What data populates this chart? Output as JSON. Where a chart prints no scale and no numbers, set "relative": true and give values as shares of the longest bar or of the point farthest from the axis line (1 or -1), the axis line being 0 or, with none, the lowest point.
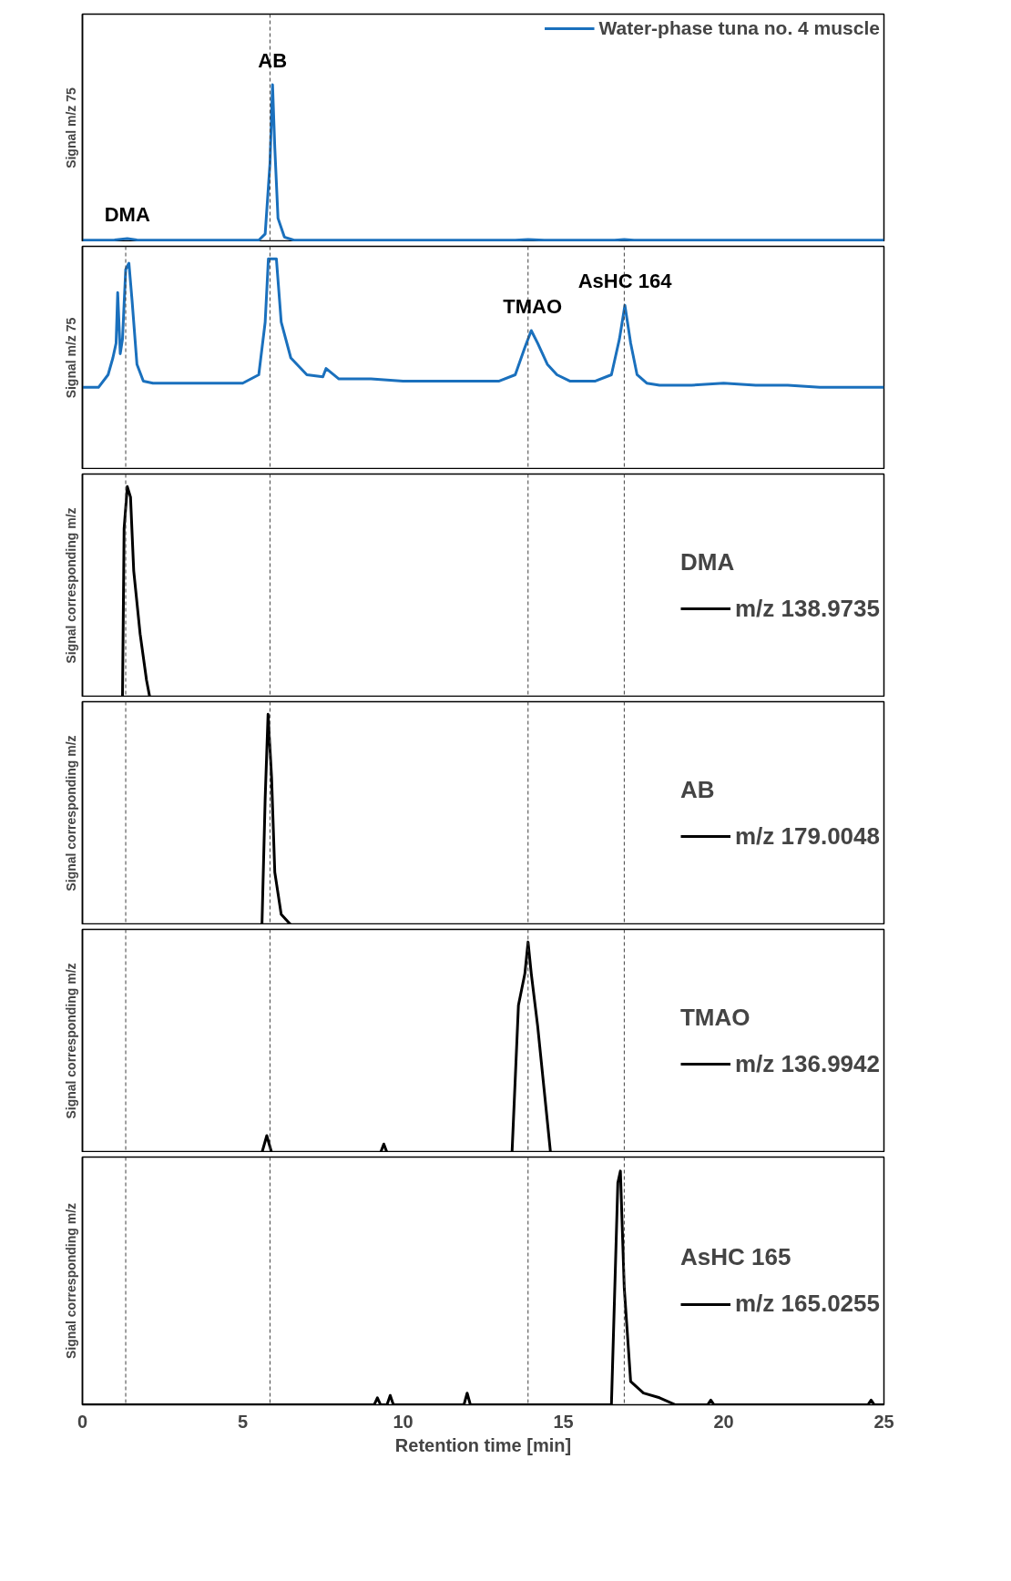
{
  "chart_data": [
    {
      "type": "line",
      "relative": true,
      "ylabel": "Signal m/z 75",
      "xlim": [
        0,
        25
      ],
      "tick_labels": false,
      "legend": "top right",
      "line_style": "solid",
      "annotations": [
        {
          "text": "DMA",
          "x": 1.4,
          "y": 0.02
        },
        {
          "text": "AB",
          "x": 5.93,
          "y": 1.0
        }
      ],
      "ref_lines": [
        {
          "axis": "x",
          "value": 5.85,
          "label": null,
          "color": "#404040",
          "line_style": "dashed"
        }
      ],
      "series": [
        {
          "name": "Water-phase tuna no. 4 muscle",
          "color": "#1a70bd",
          "x": [
            0,
            1.0,
            1.4,
            1.7,
            2.2,
            5.5,
            5.7,
            5.85,
            5.93,
            6.0,
            6.1,
            6.3,
            6.6,
            13.5,
            13.9,
            14.4,
            16.6,
            16.9,
            17.2,
            25
          ],
          "values": [
            0.01,
            0.012,
            0.02,
            0.012,
            0.01,
            0.01,
            0.05,
            0.5,
            1.0,
            0.6,
            0.15,
            0.03,
            0.01,
            0.01,
            0.015,
            0.01,
            0.01,
            0.015,
            0.01,
            0.01
          ]
        }
      ]
    },
    {
      "type": "line",
      "relative": true,
      "ylabel": "Signal m/z 75",
      "xlim": [
        0,
        25
      ],
      "tick_labels": false,
      "line_style": "solid",
      "annotations": [
        {
          "text": "TMAO",
          "x": 14.04,
          "y": 0.66
        },
        {
          "text": "AsHC 164",
          "x": 16.92,
          "y": 0.78
        }
      ],
      "ref_lines": [
        {
          "axis": "x",
          "value": 1.35,
          "label": null,
          "color": "#404040",
          "line_style": "dashed"
        },
        {
          "axis": "x",
          "value": 5.85,
          "label": null,
          "color": "#404040",
          "line_style": "dashed"
        },
        {
          "axis": "x",
          "value": 13.9,
          "label": null,
          "color": "#404040",
          "line_style": "dashed"
        },
        {
          "axis": "x",
          "value": 16.9,
          "label": null,
          "color": "#404040",
          "line_style": "dashed"
        }
      ],
      "series": [
        {
          "color": "#1a70bd",
          "x": [
            0,
            0.5,
            0.8,
            0.95,
            1.05,
            1.1,
            1.18,
            1.25,
            1.35,
            1.45,
            1.55,
            1.7,
            1.9,
            2.2,
            3,
            4,
            5,
            5.5,
            5.7,
            5.8,
            5.93,
            6.05,
            6.2,
            6.5,
            7,
            7.5,
            7.6,
            8,
            9,
            10,
            11,
            12,
            13,
            13.5,
            13.8,
            14.0,
            14.2,
            14.5,
            14.8,
            15.2,
            16,
            16.5,
            16.75,
            16.92,
            17.1,
            17.3,
            17.6,
            18,
            19,
            20,
            21,
            22,
            23,
            24,
            25
          ],
          "values": [
            0.39,
            0.39,
            0.45,
            0.53,
            0.6,
            0.84,
            0.55,
            0.62,
            0.95,
            0.98,
            0.8,
            0.5,
            0.42,
            0.41,
            0.41,
            0.41,
            0.41,
            0.45,
            0.7,
            1.0,
            1.0,
            1.0,
            0.7,
            0.53,
            0.45,
            0.44,
            0.48,
            0.43,
            0.43,
            0.42,
            0.42,
            0.42,
            0.42,
            0.45,
            0.58,
            0.66,
            0.6,
            0.5,
            0.45,
            0.42,
            0.42,
            0.45,
            0.62,
            0.78,
            0.6,
            0.45,
            0.41,
            0.4,
            0.4,
            0.41,
            0.4,
            0.4,
            0.39,
            0.39,
            0.39
          ]
        }
      ]
    },
    {
      "type": "line",
      "relative": true,
      "ylabel": "Signal corresponding m/z",
      "xlim": [
        0,
        25
      ],
      "tick_labels": false,
      "legend": "right",
      "legend_title": "DMA",
      "line_style": "solid",
      "ref_lines": [
        {
          "axis": "x",
          "value": 1.35,
          "label": null,
          "color": "#404040",
          "line_style": "dashed"
        },
        {
          "axis": "x",
          "value": 5.85,
          "label": null,
          "color": "#404040",
          "line_style": "dashed"
        },
        {
          "axis": "x",
          "value": 13.9,
          "label": null,
          "color": "#404040",
          "line_style": "dashed"
        },
        {
          "axis": "x",
          "value": 16.9,
          "label": null,
          "color": "#404040",
          "line_style": "dashed"
        }
      ],
      "series": [
        {
          "name": "m/z 138.9735",
          "color": "#000000",
          "x": [
            0,
            1.25,
            1.3,
            1.4,
            1.5,
            1.6,
            1.8,
            2.0,
            2.1,
            25
          ],
          "values": [
            0,
            0,
            0.8,
            1,
            0.95,
            0.6,
            0.3,
            0.08,
            0,
            0
          ]
        }
      ]
    },
    {
      "type": "line",
      "relative": true,
      "ylabel": "Signal corresponding m/z",
      "xlim": [
        0,
        25
      ],
      "tick_labels": false,
      "legend": "right",
      "legend_title": "AB",
      "line_style": "solid",
      "ref_lines": [
        {
          "axis": "x",
          "value": 1.35,
          "label": null,
          "color": "#404040",
          "line_style": "dashed"
        },
        {
          "axis": "x",
          "value": 5.85,
          "label": null,
          "color": "#404040",
          "line_style": "dashed"
        },
        {
          "axis": "x",
          "value": 13.9,
          "label": null,
          "color": "#404040",
          "line_style": "dashed"
        },
        {
          "axis": "x",
          "value": 16.9,
          "label": null,
          "color": "#404040",
          "line_style": "dashed"
        }
      ],
      "series": [
        {
          "name": "m/z 179.0048",
          "color": "#000000",
          "x": [
            0,
            5.6,
            5.7,
            5.79,
            5.9,
            6.0,
            6.2,
            6.5,
            25
          ],
          "values": [
            0,
            0,
            0.6,
            1,
            0.7,
            0.25,
            0.05,
            0,
            0
          ]
        }
      ]
    },
    {
      "type": "line",
      "relative": true,
      "ylabel": "Signal corresponding m/z",
      "xlim": [
        0,
        25
      ],
      "tick_labels": false,
      "legend": "right",
      "legend_title": "TMAO",
      "line_style": "solid",
      "ref_lines": [
        {
          "axis": "x",
          "value": 1.35,
          "label": null,
          "color": "#404040",
          "line_style": "dashed"
        },
        {
          "axis": "x",
          "value": 5.85,
          "label": null,
          "color": "#404040",
          "line_style": "dashed"
        },
        {
          "axis": "x",
          "value": 13.9,
          "label": null,
          "color": "#404040",
          "line_style": "dashed"
        },
        {
          "axis": "x",
          "value": 16.9,
          "label": null,
          "color": "#404040",
          "line_style": "dashed"
        }
      ],
      "series": [
        {
          "name": "m/z 136.9942",
          "color": "#000000",
          "x": [
            0,
            5.6,
            5.75,
            5.9,
            9.3,
            9.4,
            9.5,
            13.4,
            13.6,
            13.8,
            13.9,
            14.0,
            14.2,
            14.4,
            14.6,
            25
          ],
          "values": [
            0,
            0,
            0.08,
            0,
            0,
            0.04,
            0,
            0,
            0.7,
            0.85,
            1,
            0.85,
            0.6,
            0.3,
            0,
            0
          ]
        }
      ]
    },
    {
      "type": "line",
      "relative": true,
      "ylabel": "Signal corresponding m/z",
      "xlabel": "Retention time [min]",
      "xlim": [
        0,
        25
      ],
      "xticks": [
        0,
        5,
        10,
        15,
        20,
        25
      ],
      "tick_labels": "x",
      "legend": "right",
      "legend_title": "AsHC 165",
      "line_style": "solid",
      "ref_lines": [
        {
          "axis": "x",
          "value": 1.35,
          "label": null,
          "color": "#404040",
          "line_style": "dashed"
        },
        {
          "axis": "x",
          "value": 5.85,
          "label": null,
          "color": "#404040",
          "line_style": "dashed"
        },
        {
          "axis": "x",
          "value": 13.9,
          "label": null,
          "color": "#404040",
          "line_style": "dashed"
        },
        {
          "axis": "x",
          "value": 16.9,
          "label": null,
          "color": "#404040",
          "line_style": "dashed"
        }
      ],
      "series": [
        {
          "name": "m/z 165.0255",
          "color": "#000000",
          "x": [
            0,
            9.1,
            9.2,
            9.3,
            9.5,
            9.6,
            9.7,
            11.9,
            12.0,
            12.1,
            16.5,
            16.7,
            16.78,
            16.9,
            17.1,
            17.5,
            18.0,
            18.5,
            19.5,
            19.6,
            19.7,
            24.5,
            24.6,
            24.7,
            25
          ],
          "values": [
            0,
            0,
            0.03,
            0,
            0,
            0.04,
            0,
            0,
            0.05,
            0,
            0,
            0.95,
            1,
            0.5,
            0.1,
            0.05,
            0.03,
            0,
            0,
            0.02,
            0,
            0,
            0.02,
            0,
            0
          ]
        }
      ]
    }
  ]
}
